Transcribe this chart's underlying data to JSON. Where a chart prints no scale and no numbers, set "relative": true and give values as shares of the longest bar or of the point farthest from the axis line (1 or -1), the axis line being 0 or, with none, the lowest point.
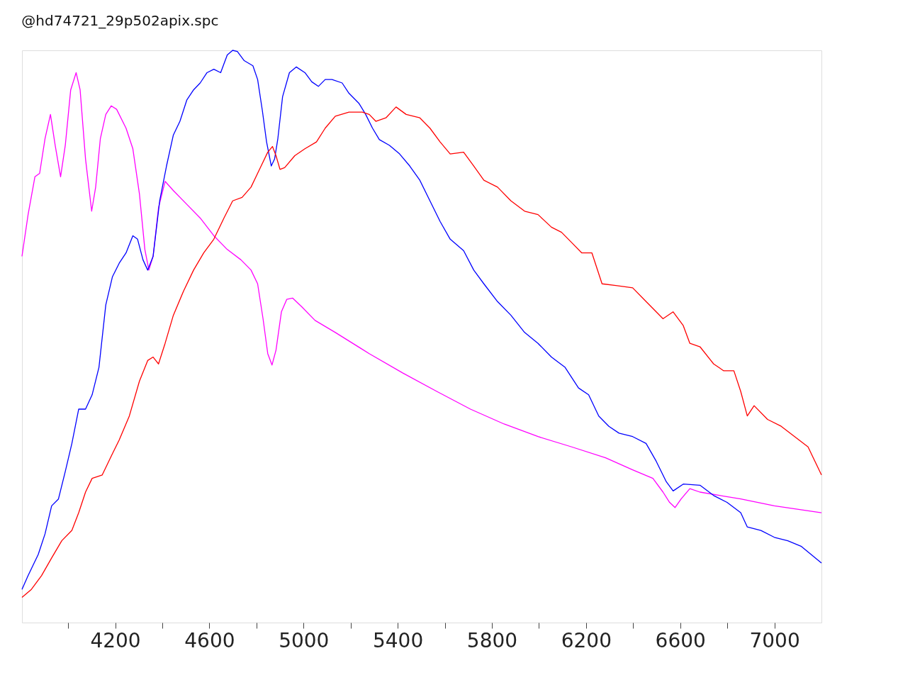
{
  "chart_data": {
    "type": "line",
    "title": "@hd74721_29p502apix.spc",
    "relative": true,
    "marker": "none",
    "line_style": "solid",
    "xlim": [
      3804,
      7200
    ],
    "xticks": [
      {
        "value": 4000,
        "label": null
      },
      4200,
      {
        "value": 4400,
        "label": null
      },
      4600,
      {
        "value": 4800,
        "label": null
      },
      5000,
      {
        "value": 5200,
        "label": null
      },
      5400,
      {
        "value": 5600,
        "label": null
      },
      5800,
      {
        "value": 6000,
        "label": null
      },
      6200,
      {
        "value": 6400,
        "label": null
      },
      6600,
      {
        "value": 6800,
        "label": null
      },
      7000
    ],
    "series": [
      {
        "color": "#ff00ff",
        "x": [
          3804,
          3830,
          3859,
          3879,
          3902,
          3925,
          3945,
          3968,
          3988,
          4011,
          4034,
          4051,
          4074,
          4100,
          4117,
          4137,
          4160,
          4183,
          4206,
          4246,
          4275,
          4303,
          4326,
          4343,
          4361,
          4384,
          4412,
          4447,
          4504,
          4561,
          4619,
          4676,
          4734,
          4777,
          4805,
          4828,
          4848,
          4866,
          4883,
          4906,
          4929,
          4954,
          4992,
          5049,
          5135,
          5279,
          5422,
          5566,
          5709,
          5852,
          5996,
          6139,
          6283,
          6398,
          6484,
          6527,
          6555,
          6578,
          6604,
          6641,
          6684,
          6857,
          7000,
          7200
        ],
        "values": [
          0.64,
          0.713,
          0.779,
          0.785,
          0.846,
          0.888,
          0.834,
          0.779,
          0.834,
          0.931,
          0.961,
          0.931,
          0.81,
          0.719,
          0.761,
          0.846,
          0.888,
          0.903,
          0.897,
          0.864,
          0.828,
          0.749,
          0.652,
          0.616,
          0.64,
          0.725,
          0.771,
          0.755,
          0.731,
          0.707,
          0.676,
          0.652,
          0.634,
          0.616,
          0.592,
          0.531,
          0.47,
          0.45,
          0.476,
          0.543,
          0.565,
          0.567,
          0.552,
          0.528,
          0.507,
          0.47,
          0.436,
          0.404,
          0.373,
          0.347,
          0.325,
          0.307,
          0.288,
          0.267,
          0.252,
          0.228,
          0.21,
          0.201,
          0.216,
          0.234,
          0.228,
          0.216,
          0.204,
          0.192
        ]
      },
      {
        "color": "#0000ff",
        "x": [
          3804,
          3830,
          3873,
          3902,
          3930,
          3959,
          3988,
          4016,
          4045,
          4074,
          4102,
          4131,
          4160,
          4188,
          4217,
          4246,
          4275,
          4295,
          4318,
          4338,
          4361,
          4389,
          4418,
          4447,
          4475,
          4504,
          4533,
          4561,
          4590,
          4619,
          4648,
          4676,
          4699,
          4719,
          4748,
          4785,
          4805,
          4825,
          4843,
          4863,
          4877,
          4891,
          4911,
          4940,
          4969,
          5006,
          5035,
          5063,
          5092,
          5121,
          5164,
          5193,
          5236,
          5264,
          5293,
          5322,
          5365,
          5408,
          5451,
          5494,
          5537,
          5580,
          5623,
          5680,
          5723,
          5766,
          5824,
          5881,
          5939,
          5996,
          6053,
          6111,
          6168,
          6211,
          6254,
          6297,
          6340,
          6398,
          6455,
          6498,
          6541,
          6570,
          6613,
          6684,
          6742,
          6799,
          6857,
          6885,
          6943,
          7000,
          7057,
          7115,
          7200
        ],
        "values": [
          0.058,
          0.082,
          0.119,
          0.155,
          0.204,
          0.216,
          0.264,
          0.313,
          0.373,
          0.373,
          0.398,
          0.446,
          0.555,
          0.604,
          0.628,
          0.646,
          0.676,
          0.67,
          0.634,
          0.616,
          0.64,
          0.737,
          0.798,
          0.852,
          0.876,
          0.913,
          0.931,
          0.943,
          0.961,
          0.967,
          0.961,
          0.992,
          1,
          0.998,
          0.982,
          0.973,
          0.949,
          0.895,
          0.84,
          0.798,
          0.81,
          0.846,
          0.919,
          0.961,
          0.971,
          0.961,
          0.945,
          0.937,
          0.949,
          0.949,
          0.943,
          0.925,
          0.907,
          0.888,
          0.864,
          0.844,
          0.834,
          0.819,
          0.798,
          0.773,
          0.737,
          0.701,
          0.67,
          0.65,
          0.616,
          0.592,
          0.561,
          0.537,
          0.507,
          0.488,
          0.464,
          0.446,
          0.41,
          0.398,
          0.361,
          0.343,
          0.331,
          0.325,
          0.313,
          0.282,
          0.246,
          0.23,
          0.242,
          0.24,
          0.222,
          0.21,
          0.192,
          0.167,
          0.161,
          0.149,
          0.143,
          0.133,
          0.104
        ]
      },
      {
        "color": "#ff0000",
        "x": [
          3804,
          3844,
          3887,
          3930,
          3973,
          4016,
          4045,
          4074,
          4102,
          4145,
          4188,
          4217,
          4260,
          4303,
          4338,
          4361,
          4384,
          4412,
          4447,
          4490,
          4533,
          4576,
          4619,
          4662,
          4699,
          4739,
          4777,
          4820,
          4848,
          4868,
          4883,
          4900,
          4920,
          4963,
          5006,
          5055,
          5092,
          5135,
          5193,
          5250,
          5279,
          5307,
          5350,
          5393,
          5436,
          5494,
          5537,
          5580,
          5623,
          5680,
          5723,
          5766,
          5824,
          5881,
          5939,
          5996,
          6053,
          6096,
          6139,
          6182,
          6225,
          6268,
          6326,
          6398,
          6455,
          6527,
          6570,
          6613,
          6641,
          6684,
          6742,
          6785,
          6828,
          6857,
          6885,
          6914,
          6971,
          7029,
          7086,
          7143,
          7200
        ],
        "values": [
          0.044,
          0.058,
          0.082,
          0.113,
          0.143,
          0.161,
          0.192,
          0.228,
          0.252,
          0.258,
          0.295,
          0.319,
          0.361,
          0.422,
          0.458,
          0.464,
          0.452,
          0.488,
          0.537,
          0.579,
          0.616,
          0.646,
          0.67,
          0.707,
          0.737,
          0.743,
          0.761,
          0.798,
          0.822,
          0.832,
          0.816,
          0.792,
          0.795,
          0.816,
          0.828,
          0.84,
          0.864,
          0.885,
          0.892,
          0.892,
          0.888,
          0.876,
          0.882,
          0.901,
          0.888,
          0.882,
          0.864,
          0.84,
          0.819,
          0.822,
          0.798,
          0.773,
          0.761,
          0.737,
          0.719,
          0.713,
          0.691,
          0.682,
          0.664,
          0.646,
          0.646,
          0.592,
          0.589,
          0.585,
          0.561,
          0.531,
          0.543,
          0.519,
          0.488,
          0.482,
          0.452,
          0.44,
          0.44,
          0.404,
          0.361,
          0.379,
          0.355,
          0.343,
          0.325,
          0.307,
          0.258
        ]
      }
    ]
  }
}
